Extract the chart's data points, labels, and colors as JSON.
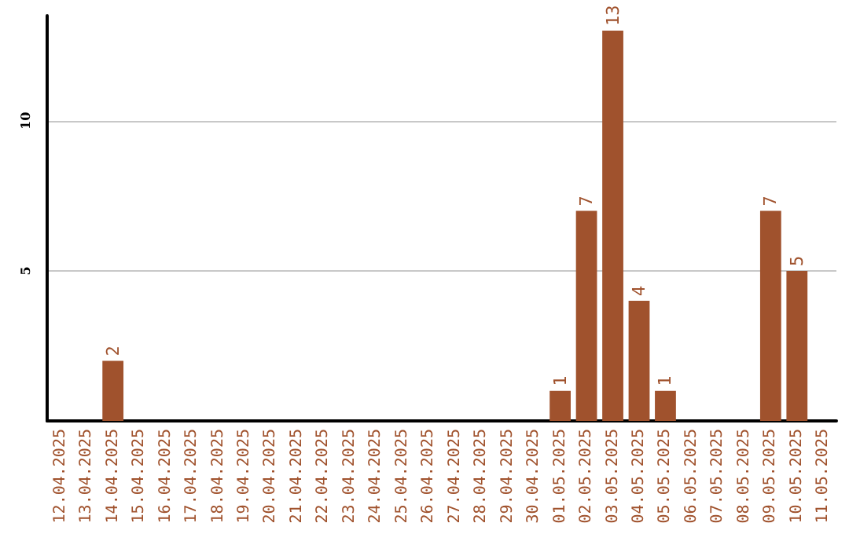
{
  "chart_data": {
    "type": "bar",
    "categories": [
      "12.04.2025",
      "13.04.2025",
      "14.04.2025",
      "15.04.2025",
      "16.04.2025",
      "17.04.2025",
      "18.04.2025",
      "19.04.2025",
      "20.04.2025",
      "21.04.2025",
      "22.04.2025",
      "23.04.2025",
      "24.04.2025",
      "25.04.2025",
      "26.04.2025",
      "27.04.2025",
      "28.04.2025",
      "29.04.2025",
      "30.04.2025",
      "01.05.2025",
      "02.05.2025",
      "03.05.2025",
      "04.05.2025",
      "05.05.2025",
      "06.05.2025",
      "07.05.2025",
      "08.05.2025",
      "09.05.2025",
      "10.05.2025",
      "11.05.2025"
    ],
    "values": [
      0,
      0,
      2,
      0,
      0,
      0,
      0,
      0,
      0,
      0,
      0,
      0,
      0,
      0,
      0,
      0,
      0,
      0,
      0,
      1,
      7,
      13,
      4,
      1,
      0,
      0,
      0,
      7,
      5,
      0
    ],
    "value_labels": [
      null,
      null,
      "2",
      null,
      null,
      null,
      null,
      null,
      null,
      null,
      null,
      null,
      null,
      null,
      null,
      null,
      null,
      null,
      null,
      "1",
      "7",
      "13",
      "4",
      "1",
      null,
      null,
      null,
      "7",
      "5",
      null
    ],
    "color": "#a0522d",
    "ylim": [
      0,
      13.5
    ],
    "yticks": [
      5,
      10
    ],
    "grid": "y"
  }
}
